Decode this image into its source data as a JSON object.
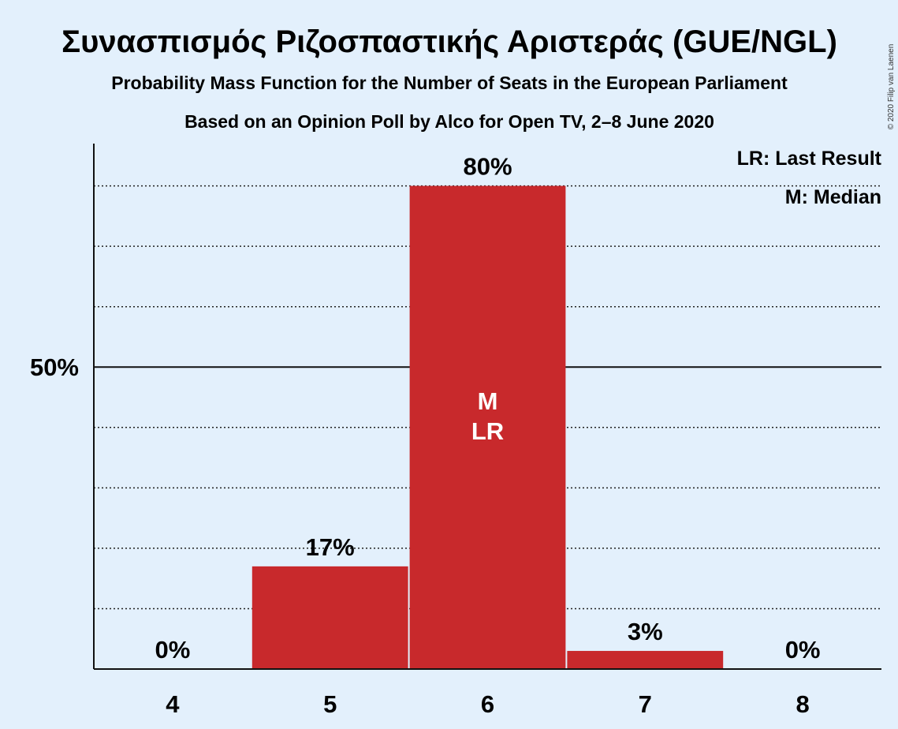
{
  "chart_data": {
    "type": "bar",
    "title": "Συνασπισμός Ριζοσπαστικής Αριστεράς (GUE/NGL)",
    "subtitle": "Probability Mass Function for the Number of Seats in the European Parliament",
    "subtitle2": "Based on an Opinion Poll by Alco for Open TV, 2–8 June 2020",
    "categories": [
      "4",
      "5",
      "6",
      "7",
      "8"
    ],
    "values": [
      0,
      17,
      80,
      3,
      0
    ],
    "value_labels": [
      "0%",
      "17%",
      "80%",
      "3%",
      "0%"
    ],
    "ylim": [
      0,
      87
    ],
    "yticks": [
      {
        "value": 50,
        "label": "50%"
      }
    ],
    "gridlines": [
      10,
      20,
      30,
      40,
      60,
      70,
      80
    ],
    "bar_markers": [
      {
        "category": "6",
        "lines": [
          "M",
          "LR"
        ]
      }
    ],
    "legend": [
      "LR: Last Result",
      "M: Median"
    ],
    "legend_position": "top-right",
    "bar_color": "#c8292c",
    "background_color": "#e3f0fc"
  },
  "copyright": "© 2020 Filip van Laenen"
}
